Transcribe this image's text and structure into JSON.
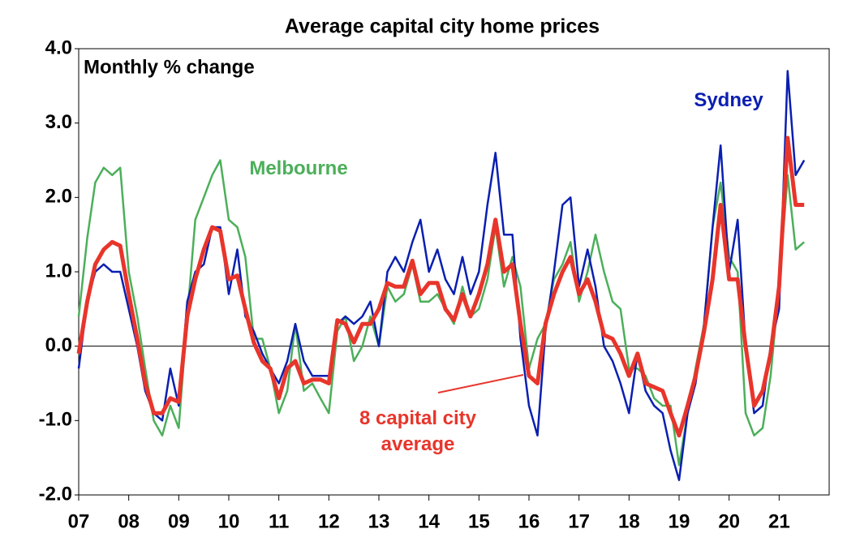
{
  "chart_data": {
    "type": "line",
    "title": "Average capital city home prices",
    "subtitle": "Monthly % change",
    "x": [
      7,
      7.17,
      7.33,
      7.5,
      7.67,
      7.83,
      8,
      8.17,
      8.33,
      8.5,
      8.67,
      8.83,
      9,
      9.17,
      9.33,
      9.5,
      9.67,
      9.83,
      10,
      10.17,
      10.33,
      10.5,
      10.67,
      10.83,
      11,
      11.17,
      11.33,
      11.5,
      11.67,
      11.83,
      12,
      12.17,
      12.33,
      12.5,
      12.67,
      12.83,
      13,
      13.17,
      13.33,
      13.5,
      13.67,
      13.83,
      14,
      14.17,
      14.33,
      14.5,
      14.67,
      14.83,
      15,
      15.17,
      15.33,
      15.5,
      15.67,
      15.83,
      16,
      16.17,
      16.33,
      16.5,
      16.67,
      16.83,
      17,
      17.17,
      17.33,
      17.5,
      17.67,
      17.83,
      18,
      18.17,
      18.33,
      18.5,
      18.67,
      18.83,
      19,
      19.17,
      19.33,
      19.5,
      19.67,
      19.83,
      20,
      20.17,
      20.33,
      20.5,
      20.67,
      20.83,
      21,
      21.17,
      21.33,
      21.5
    ],
    "series": [
      {
        "name": "Melbourne",
        "color": "#4caf5a",
        "values": [
          0.4,
          1.45,
          2.2,
          2.4,
          2.3,
          2.4,
          1.0,
          0.4,
          -0.3,
          -1.0,
          -1.2,
          -0.8,
          -1.1,
          0.4,
          1.7,
          2.0,
          2.3,
          2.5,
          1.7,
          1.6,
          1.2,
          0.1,
          0.1,
          -0.3,
          -0.9,
          -0.6,
          0.3,
          -0.6,
          -0.5,
          -0.7,
          -0.9,
          0.2,
          0.4,
          -0.2,
          0.0,
          0.4,
          0.0,
          0.8,
          0.6,
          0.7,
          1.1,
          0.6,
          0.6,
          0.7,
          0.5,
          0.3,
          0.8,
          0.4,
          0.5,
          0.9,
          1.6,
          0.8,
          1.2,
          0.8,
          -0.3,
          0.1,
          0.3,
          0.9,
          1.1,
          1.4,
          0.6,
          1.0,
          1.5,
          1.0,
          0.6,
          0.5,
          -0.3,
          -0.3,
          -0.4,
          -0.7,
          -0.8,
          -0.8,
          -1.6,
          -0.9,
          -0.3,
          0.3,
          1.6,
          2.2,
          1.2,
          1.0,
          -0.9,
          -1.2,
          -1.1,
          -0.4,
          0.8,
          2.3,
          1.3,
          1.4
        ]
      },
      {
        "name": "Sydney",
        "color": "#0a1fb0",
        "values": [
          -0.3,
          0.6,
          1.0,
          1.1,
          1.0,
          1.0,
          0.5,
          0.0,
          -0.6,
          -0.9,
          -1.0,
          -0.3,
          -0.8,
          0.6,
          1.0,
          1.1,
          1.6,
          1.6,
          0.7,
          1.3,
          0.4,
          0.2,
          -0.1,
          -0.3,
          -0.5,
          -0.2,
          0.3,
          -0.2,
          -0.4,
          -0.4,
          -0.4,
          0.3,
          0.4,
          0.3,
          0.4,
          0.6,
          0.0,
          1.0,
          1.2,
          1.0,
          1.4,
          1.7,
          1.0,
          1.3,
          0.9,
          0.7,
          1.2,
          0.7,
          1.0,
          1.9,
          2.6,
          1.5,
          1.5,
          0.1,
          -0.8,
          -1.2,
          0.2,
          1.0,
          1.9,
          2.0,
          0.8,
          1.3,
          0.8,
          0.0,
          -0.2,
          -0.5,
          -0.9,
          -0.1,
          -0.6,
          -0.8,
          -0.9,
          -1.4,
          -1.8,
          -0.9,
          -0.5,
          0.3,
          1.6,
          2.7,
          1.0,
          1.7,
          0.0,
          -0.9,
          -0.8,
          0.0,
          0.5,
          3.7,
          2.3,
          2.5
        ]
      },
      {
        "name": "8 capital city average",
        "color": "#e8352b",
        "values": [
          -0.1,
          0.6,
          1.1,
          1.3,
          1.4,
          1.35,
          0.7,
          0.1,
          -0.5,
          -0.9,
          -0.9,
          -0.7,
          -0.75,
          0.4,
          0.9,
          1.3,
          1.6,
          1.55,
          0.9,
          0.95,
          0.5,
          0.05,
          -0.2,
          -0.3,
          -0.7,
          -0.3,
          -0.2,
          -0.5,
          -0.45,
          -0.45,
          -0.5,
          0.35,
          0.3,
          0.05,
          0.3,
          0.3,
          0.5,
          0.85,
          0.8,
          0.8,
          1.15,
          0.7,
          0.85,
          0.85,
          0.5,
          0.35,
          0.7,
          0.4,
          0.7,
          1.1,
          1.7,
          1.0,
          1.1,
          0.3,
          -0.4,
          -0.5,
          0.3,
          0.7,
          1.0,
          1.2,
          0.7,
          0.9,
          0.6,
          0.15,
          0.1,
          -0.1,
          -0.4,
          -0.1,
          -0.5,
          -0.55,
          -0.6,
          -0.9,
          -1.2,
          -0.8,
          -0.4,
          0.2,
          0.9,
          1.9,
          0.9,
          0.9,
          0.0,
          -0.8,
          -0.6,
          -0.1,
          0.8,
          2.8,
          1.9,
          1.9
        ]
      }
    ],
    "xlim": [
      7,
      22
    ],
    "xticks": [
      {
        "value": 7,
        "label": "07"
      },
      {
        "value": 8,
        "label": "08"
      },
      {
        "value": 9,
        "label": "09"
      },
      {
        "value": 10,
        "label": "10"
      },
      {
        "value": 11,
        "label": "11"
      },
      {
        "value": 12,
        "label": "12"
      },
      {
        "value": 13,
        "label": "13"
      },
      {
        "value": 14,
        "label": "14"
      },
      {
        "value": 15,
        "label": "15"
      },
      {
        "value": 16,
        "label": "16"
      },
      {
        "value": 17,
        "label": "17"
      },
      {
        "value": 18,
        "label": "18"
      },
      {
        "value": 19,
        "label": "19"
      },
      {
        "value": 20,
        "label": "20"
      },
      {
        "value": 21,
        "label": "21"
      }
    ],
    "ylim": [
      -2,
      4
    ],
    "yticks": [
      {
        "value": -2,
        "label": "-2.0"
      },
      {
        "value": -1,
        "label": "-1.0"
      },
      {
        "value": 0,
        "label": "0.0"
      },
      {
        "value": 1,
        "label": "1.0"
      },
      {
        "value": 2,
        "label": "2.0"
      },
      {
        "value": 3,
        "label": "3.0"
      },
      {
        "value": 4,
        "label": "4.0"
      }
    ]
  }
}
